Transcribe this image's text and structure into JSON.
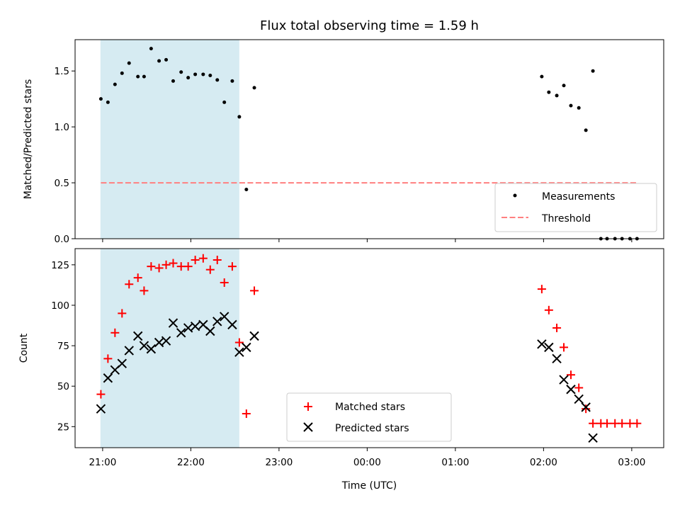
{
  "title": "Flux total observing time = 1.59 h",
  "x_tick_labels": [
    "21:00",
    "22:00",
    "23:00",
    "00:00",
    "01:00",
    "02:00",
    "03:00"
  ],
  "chart_data": [
    {
      "type": "scatter",
      "ylabel": "Matched/Predicted stars",
      "x_unit": "hours after 21:00 UTC",
      "xlim": [
        -0.3125,
        6.3625
      ],
      "ylim": [
        0,
        1.78
      ],
      "y_ticks": [
        {
          "value": 0,
          "label": "0.0"
        },
        {
          "value": 0.5,
          "label": "0.5"
        },
        {
          "value": 1.0,
          "label": "1.0"
        },
        {
          "value": 1.5,
          "label": "1.5"
        }
      ],
      "shaded_span": {
        "x0": -0.025,
        "x1": 1.55,
        "color": "#add8e6"
      },
      "threshold": {
        "name": "Threshold",
        "y": 0.5,
        "x0": -0.02,
        "x1": 6.07,
        "color": "#ff7f7f"
      },
      "series": [
        {
          "name": "Measurements",
          "color": "#000000",
          "x": [
            -0.02,
            0.06,
            0.14,
            0.22,
            0.3,
            0.4,
            0.47,
            0.55,
            0.64,
            0.72,
            0.8,
            0.89,
            0.97,
            1.05,
            1.14,
            1.22,
            1.3,
            1.38,
            1.47,
            1.55,
            1.63,
            1.72,
            4.98,
            5.06,
            5.15,
            5.23,
            5.31,
            5.4,
            5.48,
            5.56,
            5.65,
            5.72,
            5.81,
            5.89,
            5.98,
            6.06
          ],
          "y": [
            1.25,
            1.22,
            1.38,
            1.48,
            1.57,
            1.45,
            1.45,
            1.7,
            1.59,
            1.6,
            1.41,
            1.49,
            1.44,
            1.47,
            1.47,
            1.46,
            1.42,
            1.22,
            1.41,
            1.09,
            0.44,
            1.35,
            1.45,
            1.31,
            1.28,
            1.37,
            1.19,
            1.17,
            0.97,
            1.5,
            0,
            0,
            0,
            0,
            0,
            0
          ]
        }
      ],
      "legend": "lower right"
    },
    {
      "type": "scatter",
      "ylabel": "Count",
      "xlabel": "Time (UTC)",
      "x_unit": "hours after 21:00 UTC",
      "xlim": [
        -0.3125,
        6.3625
      ],
      "ylim": [
        12,
        135
      ],
      "y_ticks": [
        {
          "value": 25,
          "label": "25"
        },
        {
          "value": 50,
          "label": "50"
        },
        {
          "value": 75,
          "label": "75"
        },
        {
          "value": 100,
          "label": "100"
        },
        {
          "value": 125,
          "label": "125"
        }
      ],
      "shaded_span": {
        "x0": -0.025,
        "x1": 1.55,
        "color": "#add8e6"
      },
      "series": [
        {
          "name": "Matched stars",
          "marker": "+",
          "color": "#ff0000",
          "x": [
            -0.02,
            0.06,
            0.14,
            0.22,
            0.3,
            0.4,
            0.47,
            0.55,
            0.64,
            0.72,
            0.8,
            0.89,
            0.97,
            1.05,
            1.14,
            1.22,
            1.3,
            1.38,
            1.47,
            1.55,
            1.63,
            1.72,
            4.98,
            5.06,
            5.15,
            5.23,
            5.31,
            5.4,
            5.48,
            5.56,
            5.65,
            5.72,
            5.81,
            5.89,
            5.98,
            6.06
          ],
          "y": [
            45,
            67,
            83,
            95,
            113,
            117,
            109,
            124,
            123,
            125,
            126,
            124,
            124,
            128,
            129,
            122,
            128,
            114,
            124,
            77,
            33,
            109,
            110,
            97,
            86,
            74,
            57,
            49,
            36,
            27,
            27,
            27,
            27,
            27,
            27,
            27
          ]
        },
        {
          "name": "Predicted stars",
          "marker": "x",
          "color": "#000000",
          "x": [
            -0.02,
            0.06,
            0.14,
            0.22,
            0.3,
            0.4,
            0.47,
            0.55,
            0.64,
            0.72,
            0.8,
            0.89,
            0.97,
            1.05,
            1.14,
            1.22,
            1.3,
            1.38,
            1.47,
            1.55,
            1.63,
            1.72,
            4.98,
            5.06,
            5.15,
            5.23,
            5.31,
            5.4,
            5.48,
            5.56
          ],
          "y": [
            36,
            55,
            60,
            64,
            72,
            81,
            75,
            73,
            77,
            78,
            89,
            83,
            86,
            87,
            88,
            84,
            90,
            93,
            88,
            71,
            74,
            81,
            76,
            74,
            67,
            54,
            48,
            42,
            37,
            18
          ]
        }
      ],
      "legend": "lower center"
    }
  ]
}
